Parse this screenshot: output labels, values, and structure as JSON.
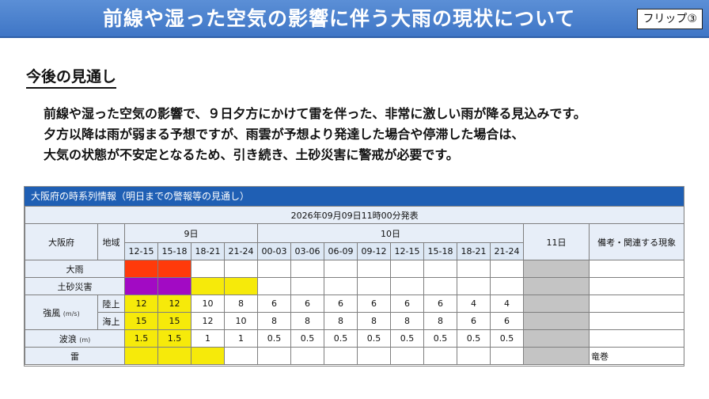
{
  "header": {
    "title": "前線や湿った空気の影響に伴う大雨の現状について",
    "badge": "フリップ③"
  },
  "section": {
    "heading": "今後の見通し",
    "paragraph_lines": [
      "前線や湿った空気の影響で、９日夕方にかけて雷を伴った、非常に激しい雨が降る見込みです。",
      "夕方以降は雨が弱まる予想ですが、雨雲が予想より発達した場合や停滞した場合は、",
      "大気の状態が不安定となるため、引き続き、土砂災害に警戒が必要です。"
    ]
  },
  "table": {
    "caption": "大阪府の時系列情報（明日までの警報等の見通し）",
    "issued": "2026年09月09日11時00分発表",
    "col_prefecture": "大阪府",
    "col_area": "地域",
    "day1_label": "9日",
    "day2_label": "10日",
    "day3_label": "11日",
    "remarks_label": "備考・関連する現象",
    "day1_slots": [
      "12-15",
      "15-18",
      "18-21",
      "21-24"
    ],
    "day2_slots": [
      "00-03",
      "03-06",
      "06-09",
      "09-12",
      "12-15",
      "15-18",
      "18-21",
      "21-24"
    ],
    "rows": {
      "rain": {
        "label": "大雨",
        "levels": [
          "red",
          "red",
          "none",
          "none",
          "none",
          "none",
          "none",
          "none",
          "none",
          "none",
          "none",
          "none"
        ]
      },
      "landslide": {
        "label": "土砂災害",
        "levels": [
          "purple",
          "purple",
          "yellow",
          "yellow",
          "none",
          "none",
          "none",
          "none",
          "none",
          "none",
          "none",
          "none"
        ]
      },
      "wind": {
        "label": "強風",
        "unit": "(m/s)",
        "land_label": "陸上",
        "sea_label": "海上",
        "land": [
          "12",
          "12",
          "10",
          "8",
          "6",
          "6",
          "6",
          "6",
          "6",
          "6",
          "4",
          "4"
        ],
        "land_levels": [
          "yellow",
          "yellow",
          "none",
          "none",
          "none",
          "none",
          "none",
          "none",
          "none",
          "none",
          "none",
          "none"
        ],
        "sea": [
          "15",
          "15",
          "12",
          "10",
          "8",
          "8",
          "8",
          "8",
          "8",
          "8",
          "6",
          "6"
        ],
        "sea_levels": [
          "yellow",
          "yellow",
          "none",
          "none",
          "none",
          "none",
          "none",
          "none",
          "none",
          "none",
          "none",
          "none"
        ]
      },
      "wave": {
        "label": "波浪",
        "unit": "(m)",
        "values": [
          "1.5",
          "1.5",
          "1",
          "1",
          "0.5",
          "0.5",
          "0.5",
          "0.5",
          "0.5",
          "0.5",
          "0.5",
          "0.5"
        ],
        "levels": [
          "yellow",
          "yellow",
          "none",
          "none",
          "none",
          "none",
          "none",
          "none",
          "none",
          "none",
          "none",
          "none"
        ]
      },
      "thunder": {
        "label": "雷",
        "levels": [
          "yellow",
          "yellow",
          "yellow",
          "none",
          "none",
          "none",
          "none",
          "none",
          "none",
          "none",
          "none",
          "none"
        ],
        "remark": "竜巻"
      }
    },
    "colors": {
      "red": "#ff3a0a",
      "purple": "#a20ac4",
      "yellow": "#f6ea0a",
      "gray": "#c4c4c4",
      "caption_blue": "#1f5fb4"
    }
  }
}
